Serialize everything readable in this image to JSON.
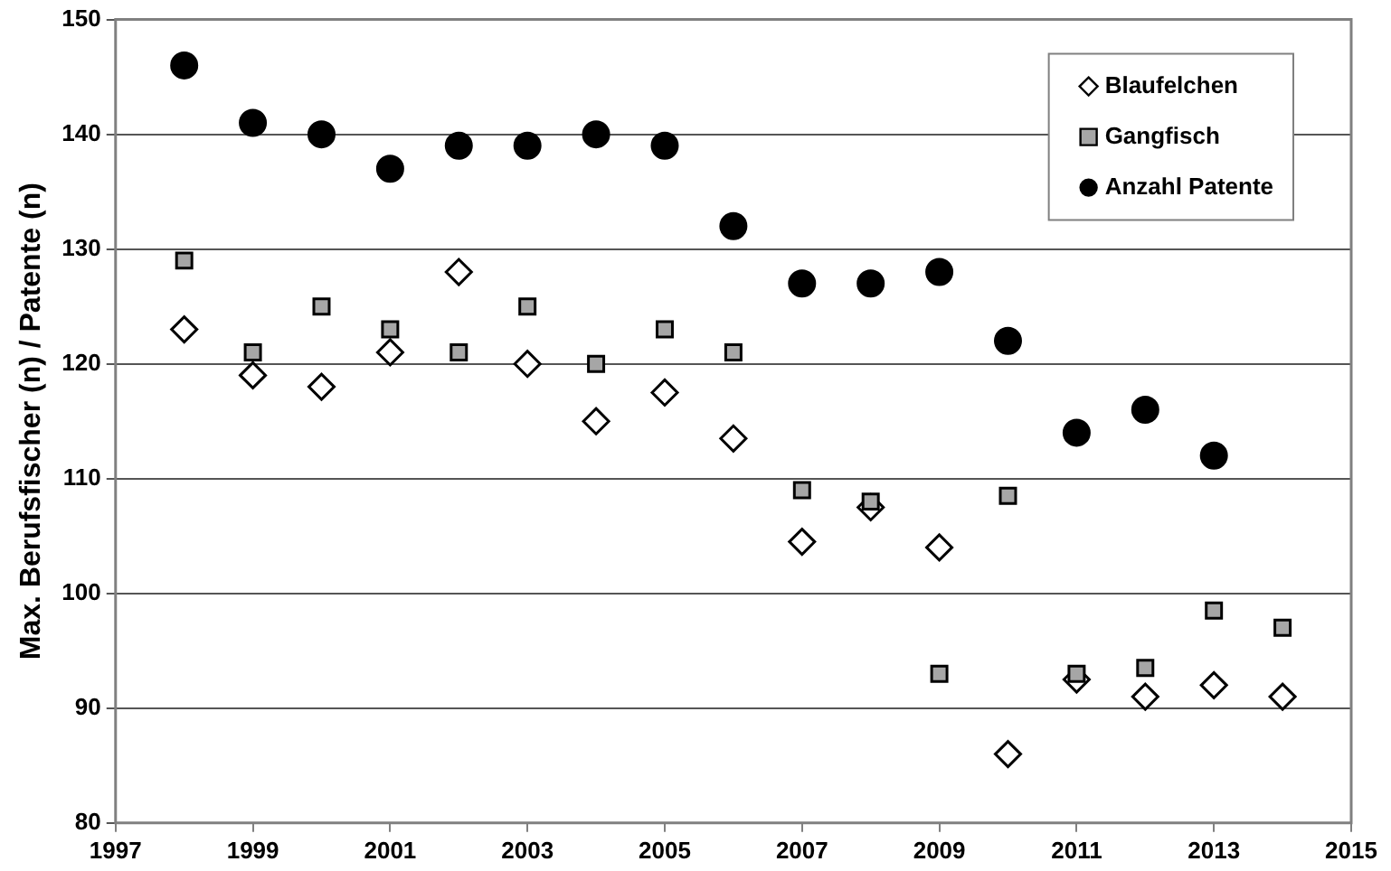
{
  "chart_data": {
    "type": "scatter",
    "ylabel": "Max. Berufsfischer (n) / Patente (n)",
    "xlim": [
      1997,
      2015
    ],
    "xticks": [
      1997,
      1999,
      2001,
      2003,
      2005,
      2007,
      2009,
      2011,
      2013,
      2015
    ],
    "ylim": [
      80,
      150
    ],
    "yticks": [
      80,
      90,
      100,
      110,
      120,
      130,
      140,
      150
    ],
    "grid": "y",
    "legend": "top right",
    "x": [
      1998,
      1999,
      2000,
      2001,
      2002,
      2003,
      2004,
      2005,
      2006,
      2007,
      2008,
      2009,
      2010,
      2011,
      2012,
      2013,
      2014
    ],
    "series": [
      {
        "name": "Blaufelchen",
        "color": "#ffffff",
        "marker": "diamond",
        "values": [
          123,
          119,
          118,
          121,
          128,
          120,
          115,
          117.5,
          113.5,
          104.5,
          107.5,
          104,
          86,
          92.5,
          91,
          92,
          91
        ]
      },
      {
        "name": "Gangfisch",
        "color": "#a6a6a6",
        "marker": "square",
        "values": [
          129,
          121,
          125,
          123,
          121,
          125,
          120,
          123,
          121,
          109,
          108,
          93,
          108.5,
          93,
          93.5,
          98.5,
          97
        ]
      },
      {
        "name": "Anzahl Patente",
        "color": "#000000",
        "marker": "circle",
        "values": [
          146,
          141,
          140,
          137,
          139,
          139,
          140,
          139,
          132,
          127,
          127,
          128,
          122,
          114,
          116,
          112,
          null
        ]
      }
    ]
  }
}
